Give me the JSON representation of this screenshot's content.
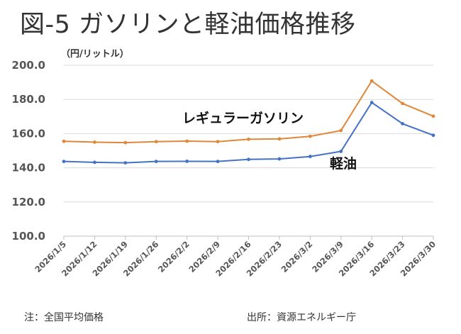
{
  "title": "図-5 ガソリンと軽油価格推移",
  "note": "注：全国平均価格",
  "source": "出所：資源エネルギー庁",
  "colors": {
    "regular": "#E0873A",
    "diesel": "#4472C4",
    "grid": "#d9d9d9",
    "axis": "#bfbfbf"
  },
  "chart_data": {
    "type": "line",
    "unit_label": "（円/リットル）",
    "categories": [
      "2026/1/5",
      "2026/1/12",
      "2026/1/19",
      "2026/1/26",
      "2026/2/2",
      "2026/2/9",
      "2026/2/16",
      "2026/2/23",
      "2026/3/2",
      "2026/3/9",
      "2026/3/16",
      "2026/3/23",
      "2026/3/30"
    ],
    "ylim": [
      100,
      200
    ],
    "yticks": [
      "100.0",
      "120.0",
      "140.0",
      "160.0",
      "180.0",
      "200.0"
    ],
    "grid": true,
    "series": [
      {
        "name": "レギュラーガソリン",
        "values": [
          155.5,
          155.0,
          154.7,
          155.3,
          155.6,
          155.3,
          156.7,
          156.9,
          158.4,
          161.8,
          190.8,
          177.6,
          170.2
        ]
      },
      {
        "name": "軽油",
        "values": [
          143.7,
          143.2,
          142.9,
          143.7,
          143.8,
          143.7,
          144.9,
          145.2,
          146.6,
          149.6,
          178.2,
          165.8,
          159.0
        ]
      }
    ]
  }
}
